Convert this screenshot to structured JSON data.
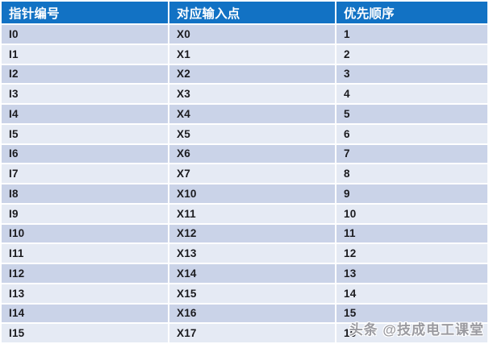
{
  "table": {
    "columns": [
      "指针编号",
      "对应输入点",
      "优先顺序"
    ],
    "rows": [
      [
        "I0",
        "X0",
        "1"
      ],
      [
        "I1",
        "X1",
        "2"
      ],
      [
        "I2",
        "X2",
        "3"
      ],
      [
        "I3",
        "X3",
        "4"
      ],
      [
        "I4",
        "X4",
        "5"
      ],
      [
        "I5",
        "X5",
        "6"
      ],
      [
        "I6",
        "X6",
        "7"
      ],
      [
        "I7",
        "X7",
        "8"
      ],
      [
        "I8",
        "X10",
        "9"
      ],
      [
        "I9",
        "X11",
        "10"
      ],
      [
        "I10",
        "X12",
        "11"
      ],
      [
        "I11",
        "X13",
        "12"
      ],
      [
        "I12",
        "X14",
        "13"
      ],
      [
        "I13",
        "X15",
        "14"
      ],
      [
        "I14",
        "X16",
        "15"
      ],
      [
        "I15",
        "X17",
        "16"
      ]
    ]
  },
  "watermark": {
    "text": "头条 @技成电工课堂"
  },
  "colors": {
    "header_bg": "#1272c4",
    "header_text": "#ffffff",
    "row_dark": "#cad3e8",
    "row_light": "#e5eaf4",
    "cell_text": "#1b1b1f",
    "watermark_text": "#9a9aa0"
  }
}
